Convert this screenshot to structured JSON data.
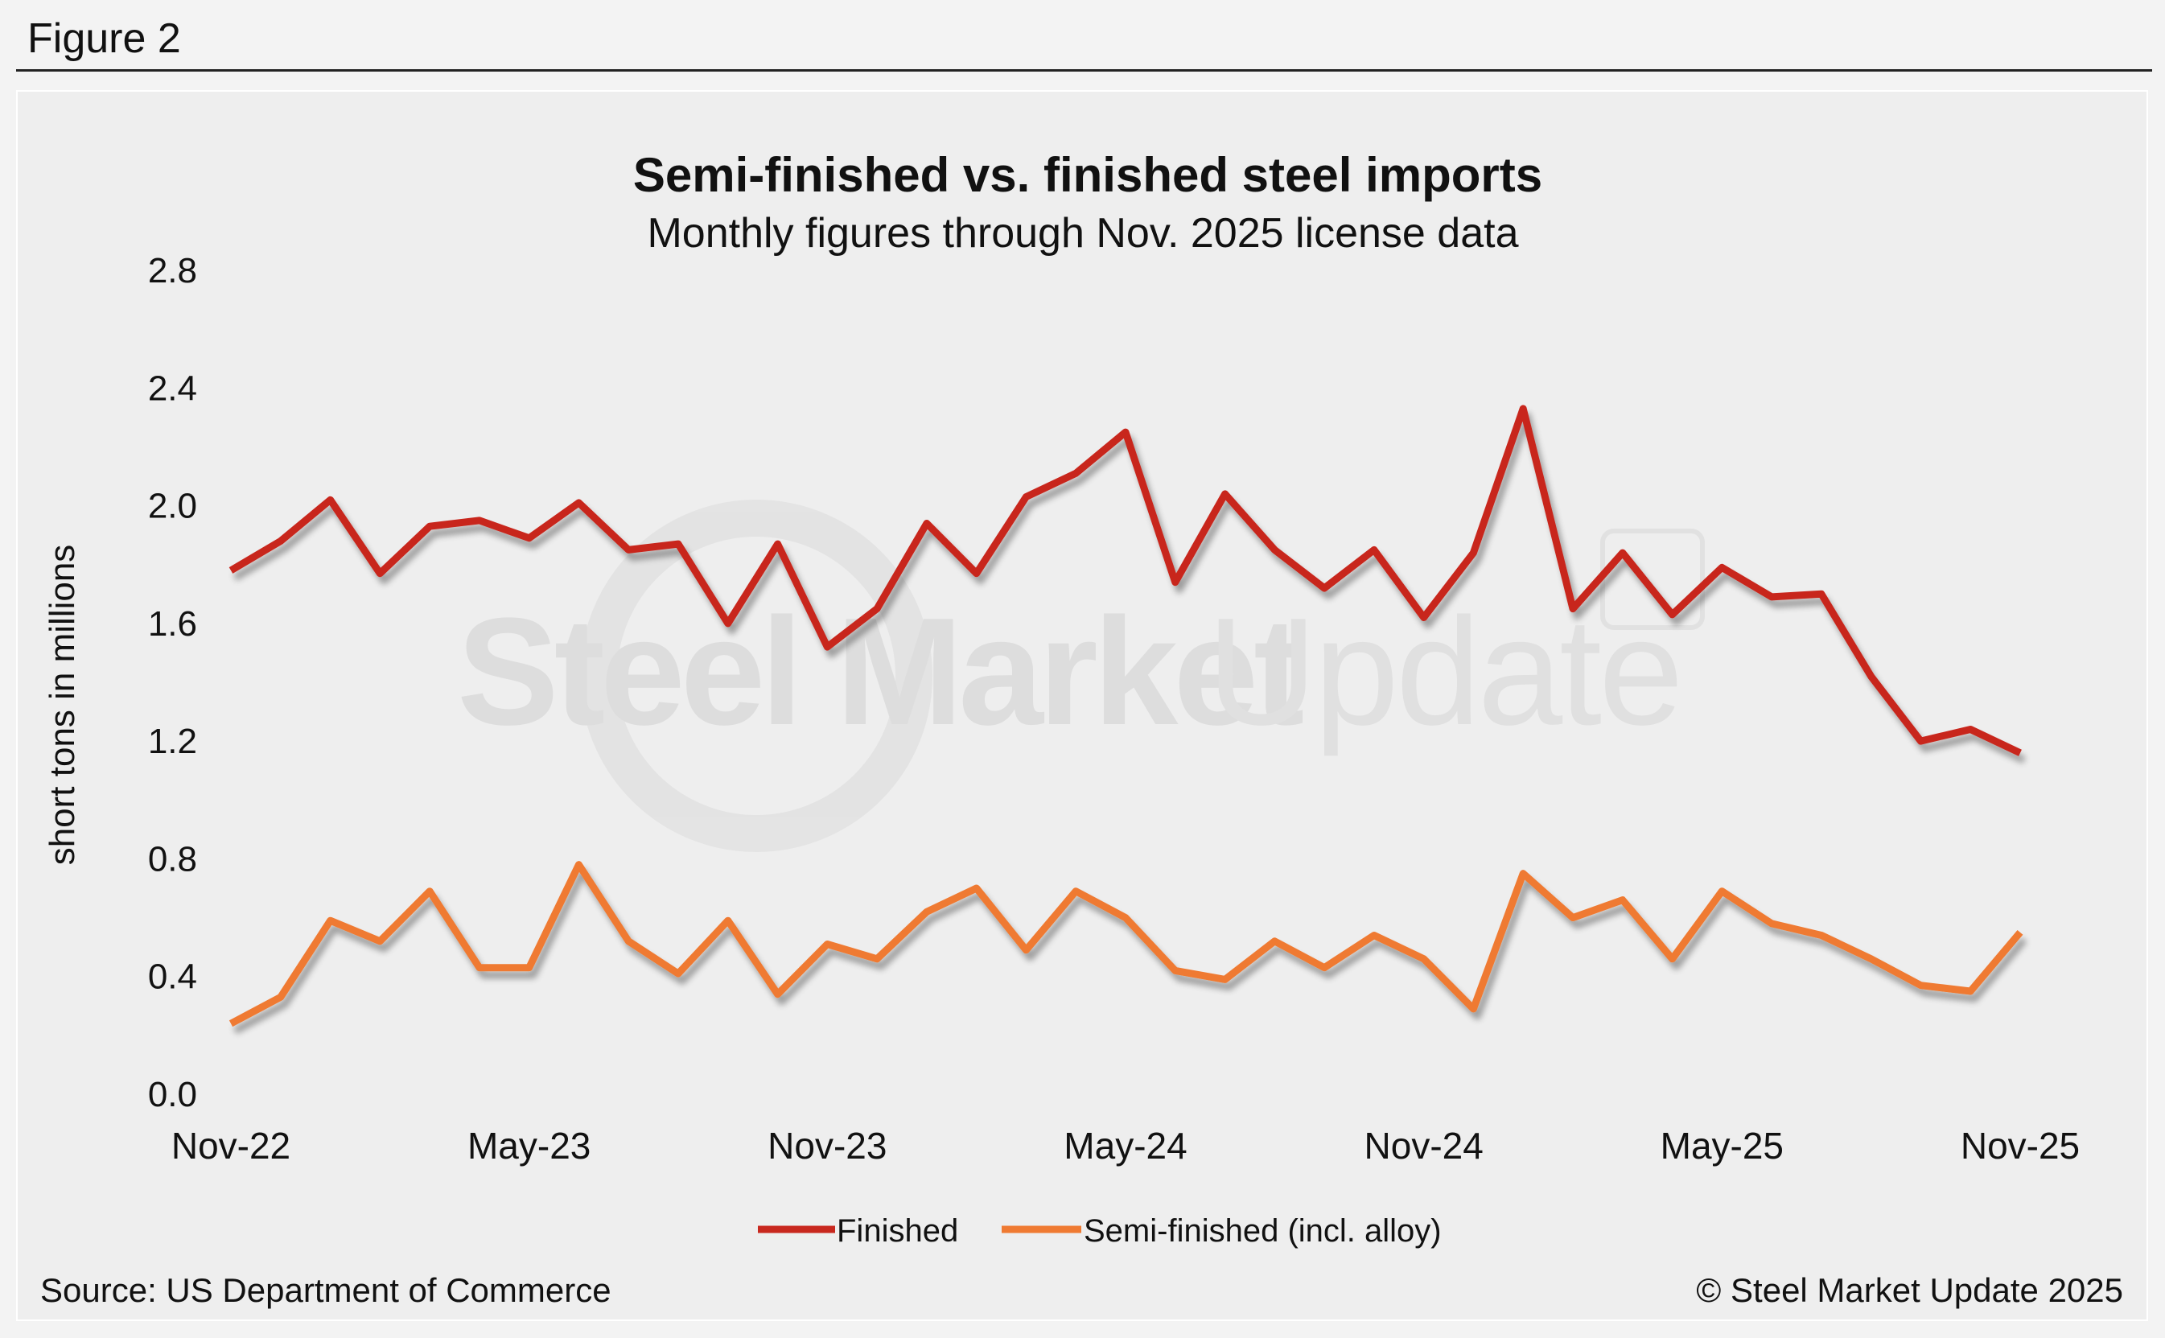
{
  "figure_label": "Figure 2",
  "source": "Source: US Department of Commerce",
  "copyright": "© Steel Market Update 2025",
  "watermark": {
    "word1": "Steel Market",
    "word2": "Update"
  },
  "colors": {
    "finished": "#c8281e",
    "semi": "#ef7a32",
    "text": "#111111",
    "shadow": "#bdbdbd",
    "watermark": "#dcdcdc"
  },
  "chart_data": {
    "type": "line",
    "title": "Semi-finished vs. finished steel imports",
    "subtitle": "Monthly figures through Nov. 2025 license data",
    "ylabel": "short tons in millions",
    "xlabel": "",
    "ylim": [
      0,
      2.8
    ],
    "yticks": [
      "0.0",
      "0.4",
      "0.8",
      "1.2",
      "1.6",
      "2.0",
      "2.4",
      "2.8"
    ],
    "x": [
      "Nov-22",
      "Dec-22",
      "Jan-23",
      "Feb-23",
      "Mar-23",
      "Apr-23",
      "May-23",
      "Jun-23",
      "Jul-23",
      "Aug-23",
      "Sep-23",
      "Oct-23",
      "Nov-23",
      "Dec-23",
      "Jan-24",
      "Feb-24",
      "Mar-24",
      "Apr-24",
      "May-24",
      "Jun-24",
      "Jul-24",
      "Aug-24",
      "Sep-24",
      "Oct-24",
      "Nov-24",
      "Dec-24",
      "Jan-25",
      "Feb-25",
      "Mar-25",
      "Apr-25",
      "May-25",
      "Jun-25",
      "Jul-25",
      "Aug-25",
      "Sep-25",
      "Oct-25",
      "Nov-25"
    ],
    "xtick_labels": [
      {
        "index": 0,
        "label": "Nov-22"
      },
      {
        "index": 6,
        "label": "May-23"
      },
      {
        "index": 12,
        "label": "Nov-23"
      },
      {
        "index": 18,
        "label": "May-24"
      },
      {
        "index": 24,
        "label": "Nov-24"
      },
      {
        "index": 30,
        "label": "May-25"
      },
      {
        "index": 36,
        "label": "Nov-25"
      }
    ],
    "series": [
      {
        "name": "Finished",
        "key": "finished",
        "values": [
          1.78,
          1.88,
          2.02,
          1.77,
          1.93,
          1.95,
          1.89,
          2.01,
          1.85,
          1.87,
          1.6,
          1.87,
          1.52,
          1.65,
          1.94,
          1.77,
          2.03,
          2.11,
          2.25,
          1.74,
          2.04,
          1.85,
          1.72,
          1.85,
          1.62,
          1.84,
          2.33,
          1.65,
          1.84,
          1.63,
          1.79,
          1.69,
          1.7,
          1.42,
          1.2,
          1.24,
          1.16
        ]
      },
      {
        "name": "Semi-finished (incl. alloy)",
        "key": "semi",
        "values": [
          0.24,
          0.33,
          0.59,
          0.52,
          0.69,
          0.43,
          0.43,
          0.78,
          0.52,
          0.41,
          0.59,
          0.34,
          0.51,
          0.46,
          0.62,
          0.7,
          0.49,
          0.69,
          0.6,
          0.42,
          0.39,
          0.52,
          0.43,
          0.54,
          0.46,
          0.29,
          0.75,
          0.6,
          0.66,
          0.46,
          0.69,
          0.58,
          0.54,
          0.46,
          0.37,
          0.35,
          0.55
        ]
      }
    ],
    "legend": {
      "position": "bottom-center"
    }
  }
}
